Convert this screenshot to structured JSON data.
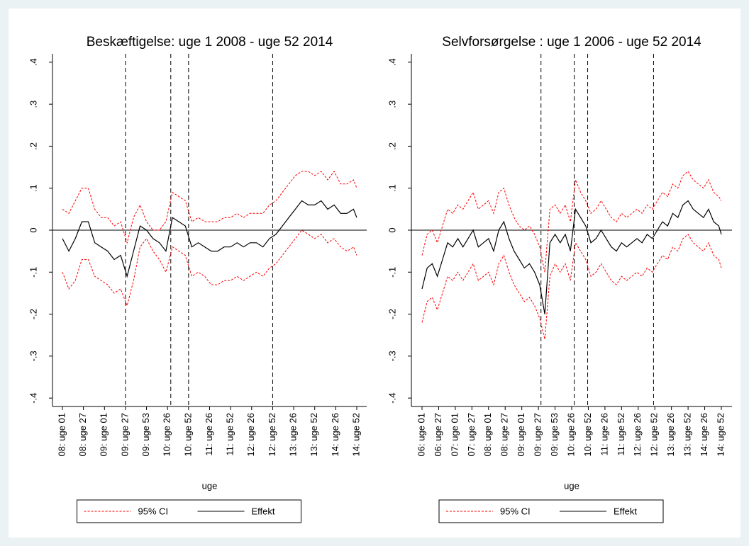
{
  "chart_data": [
    {
      "type": "line",
      "title": "Beskæftigelse: uge 1 2008 - uge 52 2014",
      "xlabel": "uge",
      "x": [
        0,
        8,
        16,
        24,
        32,
        40,
        48,
        56,
        64,
        72,
        80,
        88,
        96,
        104,
        112,
        120,
        128,
        136,
        144,
        152,
        160,
        168,
        176,
        184,
        192,
        200,
        208,
        216,
        224,
        232,
        240,
        248,
        256,
        264,
        272,
        280,
        288,
        296,
        304,
        312,
        320,
        328,
        336,
        344,
        352,
        360,
        364
      ],
      "xlim": [
        0,
        364
      ],
      "xticks": [
        {
          "value": 0,
          "label": "08: uge 01"
        },
        {
          "value": 26,
          "label": "08: uge 27"
        },
        {
          "value": 52,
          "label": "09: uge 01"
        },
        {
          "value": 78,
          "label": "09: uge 27"
        },
        {
          "value": 104,
          "label": "09: uge 53"
        },
        {
          "value": 130,
          "label": "10: uge 26"
        },
        {
          "value": 156,
          "label": "10: uge 52"
        },
        {
          "value": 182,
          "label": "11: uge 26"
        },
        {
          "value": 208,
          "label": "11: uge 52"
        },
        {
          "value": 234,
          "label": "12: uge 26"
        },
        {
          "value": 260,
          "label": "12: uge 52"
        },
        {
          "value": 286,
          "label": "13: uge 26"
        },
        {
          "value": 312,
          "label": "13: uge 52"
        },
        {
          "value": 338,
          "label": "14: uge 26"
        },
        {
          "value": 364,
          "label": "14: uge 52"
        }
      ],
      "ylim": [
        -0.42,
        0.42
      ],
      "yticks": [
        {
          "value": -0.4,
          "label": "-.4"
        },
        {
          "value": -0.3,
          "label": "-.3"
        },
        {
          "value": -0.2,
          "label": "-.2"
        },
        {
          "value": -0.1,
          "label": "-.1"
        },
        0,
        {
          "value": 0.1,
          "label": ".1"
        },
        {
          "value": 0.2,
          "label": ".2"
        },
        {
          "value": 0.3,
          "label": ".3"
        },
        {
          "value": 0.4,
          "label": ".4"
        }
      ],
      "vlines": [
        78,
        134,
        156,
        260
      ],
      "hline": 0,
      "legend": "bottom",
      "series": [
        {
          "name": "95% CI",
          "color": "#ff0000",
          "dashed": true,
          "upper": [
            0.05,
            0.04,
            0.07,
            0.1,
            0.1,
            0.05,
            0.03,
            0.03,
            0.01,
            0.02,
            -0.03,
            0.03,
            0.06,
            0.02,
            0.0,
            0.0,
            0.02,
            0.09,
            0.08,
            0.07,
            0.02,
            0.03,
            0.02,
            0.02,
            0.02,
            0.03,
            0.03,
            0.04,
            0.03,
            0.04,
            0.04,
            0.04,
            0.06,
            0.07,
            0.09,
            0.11,
            0.13,
            0.14,
            0.14,
            0.13,
            0.14,
            0.12,
            0.14,
            0.11,
            0.11,
            0.12,
            0.1
          ],
          "lower": [
            -0.1,
            -0.14,
            -0.12,
            -0.07,
            -0.07,
            -0.11,
            -0.12,
            -0.13,
            -0.15,
            -0.14,
            -0.18,
            -0.12,
            -0.04,
            -0.02,
            -0.05,
            -0.07,
            -0.1,
            -0.04,
            -0.05,
            -0.06,
            -0.11,
            -0.1,
            -0.11,
            -0.13,
            -0.13,
            -0.12,
            -0.12,
            -0.11,
            -0.12,
            -0.11,
            -0.1,
            -0.11,
            -0.09,
            -0.08,
            -0.06,
            -0.04,
            -0.02,
            0.0,
            -0.01,
            -0.02,
            -0.01,
            -0.03,
            -0.02,
            -0.04,
            -0.05,
            -0.04,
            -0.06
          ]
        },
        {
          "name": "Effekt",
          "color": "#000000",
          "dashed": false,
          "values": [
            -0.02,
            -0.05,
            -0.02,
            0.02,
            0.02,
            -0.03,
            -0.04,
            -0.05,
            -0.07,
            -0.06,
            -0.11,
            -0.05,
            0.01,
            0.0,
            -0.02,
            -0.03,
            -0.05,
            0.03,
            0.02,
            0.01,
            -0.04,
            -0.03,
            -0.04,
            -0.05,
            -0.05,
            -0.04,
            -0.04,
            -0.03,
            -0.04,
            -0.03,
            -0.03,
            -0.04,
            -0.02,
            -0.01,
            0.01,
            0.03,
            0.05,
            0.07,
            0.06,
            0.06,
            0.07,
            0.05,
            0.06,
            0.04,
            0.04,
            0.05,
            0.03
          ]
        }
      ]
    },
    {
      "type": "line",
      "title": "Selvforsørgelse : uge 1 2006 - uge 52 2014",
      "xlabel": "uge",
      "x": [
        0,
        8,
        16,
        24,
        32,
        40,
        48,
        56,
        64,
        72,
        80,
        88,
        96,
        104,
        112,
        120,
        128,
        136,
        144,
        152,
        160,
        168,
        176,
        184,
        192,
        200,
        208,
        216,
        224,
        232,
        240,
        248,
        256,
        264,
        272,
        280,
        288,
        296,
        304,
        312,
        320,
        328,
        336,
        344,
        352,
        360,
        368,
        376,
        384,
        392,
        400,
        408,
        416,
        424,
        432,
        440,
        448,
        456,
        464,
        468
      ],
      "xlim": [
        0,
        468
      ],
      "xticks": [
        {
          "value": 0,
          "label": "06: uge 01"
        },
        {
          "value": 26,
          "label": "06: uge 27"
        },
        {
          "value": 52,
          "label": "07: uge 01"
        },
        {
          "value": 78,
          "label": "07: uge 27"
        },
        {
          "value": 104,
          "label": "08: uge 01"
        },
        {
          "value": 130,
          "label": "08: uge 27"
        },
        {
          "value": 156,
          "label": "09: uge 01"
        },
        {
          "value": 182,
          "label": "09: uge 27"
        },
        {
          "value": 208,
          "label": "09: uge 53"
        },
        {
          "value": 234,
          "label": "10: uge 26"
        },
        {
          "value": 260,
          "label": "10: uge 52"
        },
        {
          "value": 286,
          "label": "11: uge 26"
        },
        {
          "value": 312,
          "label": "11: uge 52"
        },
        {
          "value": 338,
          "label": "12: uge 26"
        },
        {
          "value": 364,
          "label": "12: uge 52"
        },
        {
          "value": 390,
          "label": "13: uge 26"
        },
        {
          "value": 416,
          "label": "13: uge 52"
        },
        {
          "value": 442,
          "label": "14: uge 26"
        },
        {
          "value": 468,
          "label": "14: uge 52"
        }
      ],
      "ylim": [
        -0.42,
        0.42
      ],
      "yticks": [
        {
          "value": -0.4,
          "label": "-.4"
        },
        {
          "value": -0.3,
          "label": "-.3"
        },
        {
          "value": -0.2,
          "label": "-.2"
        },
        {
          "value": -0.1,
          "label": "-.1"
        },
        0,
        {
          "value": 0.1,
          "label": ".1"
        },
        {
          "value": 0.2,
          "label": ".2"
        },
        {
          "value": 0.3,
          "label": ".3"
        },
        {
          "value": 0.4,
          "label": ".4"
        }
      ],
      "vlines": [
        186,
        238,
        259,
        362
      ],
      "hline": 0,
      "legend": "bottom",
      "series": [
        {
          "name": "95% CI",
          "color": "#ff0000",
          "dashed": true,
          "upper": [
            -0.06,
            -0.01,
            0.0,
            -0.03,
            0.01,
            0.05,
            0.04,
            0.06,
            0.05,
            0.07,
            0.09,
            0.05,
            0.06,
            0.07,
            0.04,
            0.09,
            0.1,
            0.06,
            0.03,
            0.01,
            0.0,
            0.01,
            -0.01,
            -0.04,
            -0.1,
            0.05,
            0.06,
            0.04,
            0.06,
            0.02,
            0.12,
            0.09,
            0.07,
            0.04,
            0.05,
            0.07,
            0.05,
            0.03,
            0.02,
            0.04,
            0.03,
            0.04,
            0.05,
            0.04,
            0.06,
            0.05,
            0.07,
            0.09,
            0.08,
            0.11,
            0.1,
            0.13,
            0.14,
            0.12,
            0.11,
            0.1,
            0.12,
            0.09,
            0.08,
            0.07
          ],
          "lower": [
            -0.22,
            -0.17,
            -0.16,
            -0.19,
            -0.15,
            -0.11,
            -0.12,
            -0.1,
            -0.12,
            -0.1,
            -0.08,
            -0.12,
            -0.11,
            -0.1,
            -0.13,
            -0.08,
            -0.06,
            -0.1,
            -0.13,
            -0.15,
            -0.17,
            -0.16,
            -0.18,
            -0.21,
            -0.26,
            -0.11,
            -0.08,
            -0.1,
            -0.08,
            -0.12,
            -0.03,
            -0.05,
            -0.07,
            -0.11,
            -0.1,
            -0.08,
            -0.1,
            -0.12,
            -0.13,
            -0.11,
            -0.12,
            -0.11,
            -0.1,
            -0.11,
            -0.09,
            -0.1,
            -0.08,
            -0.06,
            -0.07,
            -0.04,
            -0.05,
            -0.02,
            -0.01,
            -0.03,
            -0.04,
            -0.05,
            -0.03,
            -0.06,
            -0.07,
            -0.09
          ]
        },
        {
          "name": "Effekt",
          "color": "#000000",
          "dashed": false,
          "values": [
            -0.14,
            -0.09,
            -0.08,
            -0.11,
            -0.07,
            -0.03,
            -0.04,
            -0.02,
            -0.04,
            -0.02,
            0.0,
            -0.04,
            -0.03,
            -0.02,
            -0.05,
            0.0,
            0.02,
            -0.02,
            -0.05,
            -0.07,
            -0.09,
            -0.08,
            -0.1,
            -0.13,
            -0.2,
            -0.03,
            -0.01,
            -0.03,
            -0.01,
            -0.05,
            0.05,
            0.03,
            0.01,
            -0.03,
            -0.02,
            0.0,
            -0.02,
            -0.04,
            -0.05,
            -0.03,
            -0.04,
            -0.03,
            -0.02,
            -0.03,
            -0.01,
            -0.02,
            0.0,
            0.02,
            0.01,
            0.04,
            0.03,
            0.06,
            0.07,
            0.05,
            0.04,
            0.03,
            0.05,
            0.02,
            0.01,
            -0.01
          ]
        }
      ]
    }
  ]
}
